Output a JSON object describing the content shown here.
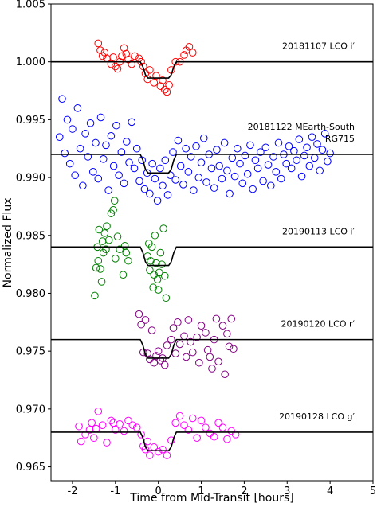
{
  "chart_data": {
    "type": "scatter",
    "xlabel": "Time from Mid-Transit [hours]",
    "ylabel": "Normalized Flux",
    "xlim": [
      -2.5,
      5
    ],
    "ylim": [
      0.9638,
      1.005
    ],
    "xticks": [
      -2,
      -1,
      0,
      1,
      2,
      3,
      4,
      5
    ],
    "yticks": [
      {
        "value": 0.965,
        "label": "0.965"
      },
      {
        "value": 0.97,
        "label": "0.970"
      },
      {
        "value": 0.975,
        "label": "0.975"
      },
      {
        "value": 0.98,
        "label": "0.980"
      },
      {
        "value": 0.985,
        "label": "0.985"
      },
      {
        "value": 0.99,
        "label": "0.990"
      },
      {
        "value": 0.995,
        "label": "0.995"
      },
      {
        "value": 1.0,
        "label": "1.000"
      },
      {
        "value": 1.005,
        "label": "1.005"
      }
    ],
    "model_x": [
      -2.5,
      -0.42,
      -0.36,
      -0.3,
      -0.24,
      0.24,
      0.3,
      0.36,
      0.42,
      5
    ],
    "series": [
      {
        "label": [
          "20181107 LCO i′"
        ],
        "color": "#ff0000",
        "x": [
          -1.4,
          -1.35,
          -1.3,
          -1.25,
          -1.2,
          -1.1,
          -1.05,
          -1.0,
          -0.95,
          -0.9,
          -0.85,
          -0.8,
          -0.75,
          -0.7,
          -0.62,
          -0.55,
          -0.45,
          -0.4,
          -0.35,
          -0.3,
          -0.25,
          -0.2,
          -0.1,
          -0.05,
          0.05,
          0.1,
          0.15,
          0.2,
          0.25,
          0.3,
          0.4,
          0.5,
          0.6,
          0.65,
          0.72,
          0.8
        ],
        "values": [
          1.0016,
          1.001,
          1.0005,
          1.0008,
          1.0003,
          0.9998,
          1.0004,
          0.9996,
          0.9994,
          1.0,
          1.0005,
          1.0012,
          1.0007,
          1.0002,
          0.9998,
          1.0005,
          1.0003,
          1.0,
          0.9996,
          0.999,
          0.9985,
          0.9993,
          0.9982,
          0.9988,
          0.9979,
          0.9984,
          0.9976,
          0.9974,
          0.998,
          0.9993,
          1.0,
          1.0,
          1.0006,
          1.001,
          1.0013,
          1.0008
        ],
        "model": [
          1.0,
          1.0,
          0.99958,
          0.99888,
          0.9986,
          0.9986,
          0.99888,
          0.99958,
          1.0,
          1.0
        ]
      },
      {
        "label": [
          "20181122 MEarth-South",
          "RG715"
        ],
        "color": "#0000ff",
        "x": [
          -2.3,
          -2.24,
          -2.18,
          -2.12,
          -2.06,
          -2.0,
          -1.94,
          -1.88,
          -1.82,
          -1.76,
          -1.7,
          -1.64,
          -1.58,
          -1.52,
          -1.46,
          -1.4,
          -1.34,
          -1.28,
          -1.22,
          -1.16,
          -1.1,
          -1.04,
          -0.98,
          -0.92,
          -0.86,
          -0.8,
          -0.74,
          -0.68,
          -0.62,
          -0.56,
          -0.5,
          -0.44,
          -0.38,
          -0.32,
          -0.26,
          -0.2,
          -0.14,
          -0.08,
          -0.02,
          0.04,
          0.1,
          0.16,
          0.22,
          0.28,
          0.34,
          0.4,
          0.46,
          0.52,
          0.58,
          0.64,
          0.7,
          0.76,
          0.82,
          0.88,
          0.94,
          1.0,
          1.06,
          1.12,
          1.18,
          1.24,
          1.3,
          1.36,
          1.42,
          1.48,
          1.54,
          1.6,
          1.66,
          1.72,
          1.78,
          1.84,
          1.9,
          1.96,
          2.02,
          2.08,
          2.14,
          2.2,
          2.26,
          2.32,
          2.38,
          2.44,
          2.5,
          2.56,
          2.62,
          2.68,
          2.74,
          2.8,
          2.86,
          2.92,
          2.98,
          3.04,
          3.1,
          3.16,
          3.22,
          3.28,
          3.34,
          3.4,
          3.46,
          3.52,
          3.58,
          3.64,
          3.7,
          3.76,
          3.82,
          3.88,
          3.94,
          4.0
        ],
        "values": [
          0.9935,
          0.9968,
          0.9921,
          0.995,
          0.9912,
          0.9942,
          0.9902,
          0.996,
          0.9925,
          0.9893,
          0.9938,
          0.9918,
          0.9947,
          0.9905,
          0.993,
          0.9899,
          0.9952,
          0.9916,
          0.9928,
          0.9889,
          0.9936,
          0.991,
          0.9945,
          0.9902,
          0.9922,
          0.9895,
          0.9931,
          0.9913,
          0.9948,
          0.9908,
          0.9925,
          0.9897,
          0.9915,
          0.989,
          0.9904,
          0.9886,
          0.9912,
          0.9899,
          0.988,
          0.9908,
          0.9893,
          0.9915,
          0.9885,
          0.9902,
          0.9922,
          0.9898,
          0.9932,
          0.991,
          0.9894,
          0.9925,
          0.9905,
          0.9918,
          0.9889,
          0.9927,
          0.99,
          0.9913,
          0.9934,
          0.9896,
          0.992,
          0.9908,
          0.9891,
          0.9924,
          0.991,
          0.9899,
          0.993,
          0.9906,
          0.9886,
          0.9917,
          0.9901,
          0.9925,
          0.9912,
          0.9895,
          0.9919,
          0.9903,
          0.9928,
          0.989,
          0.9915,
          0.9908,
          0.9922,
          0.9897,
          0.9926,
          0.9911,
          0.9893,
          0.9918,
          0.9905,
          0.993,
          0.9899,
          0.992,
          0.9912,
          0.9927,
          0.9908,
          0.9923,
          0.9915,
          0.9933,
          0.9901,
          0.9919,
          0.9926,
          0.991,
          0.9935,
          0.9917,
          0.9929,
          0.9906,
          0.9924,
          0.9938,
          0.9914,
          0.9921
        ],
        "model": [
          0.992,
          0.992,
          0.99152,
          0.99072,
          0.9904,
          0.9904,
          0.99072,
          0.99152,
          0.992,
          0.992
        ]
      },
      {
        "label": [
          "20190113 LCO i′"
        ],
        "color": "#008000",
        "x": [
          -1.48,
          -1.45,
          -1.42,
          -1.4,
          -1.38,
          -1.35,
          -1.32,
          -1.3,
          -1.28,
          -1.25,
          -1.22,
          -1.2,
          -1.15,
          -1.1,
          -1.05,
          -1.02,
          -1.0,
          -0.95,
          -0.9,
          -0.82,
          -0.78,
          -0.75,
          -0.7,
          -0.25,
          -0.22,
          -0.2,
          -0.18,
          -0.15,
          -0.12,
          -0.1,
          -0.08,
          -0.05,
          -0.02,
          0.0,
          0.02,
          0.05,
          0.08,
          0.12,
          0.15,
          0.18
        ],
        "values": [
          0.9798,
          0.9822,
          0.984,
          0.9828,
          0.9855,
          0.9821,
          0.981,
          0.9845,
          0.9835,
          0.9852,
          0.9838,
          0.9858,
          0.9846,
          0.9869,
          0.9872,
          0.988,
          0.983,
          0.9849,
          0.9838,
          0.9816,
          0.9841,
          0.9835,
          0.9828,
          0.9832,
          0.9843,
          0.982,
          0.9828,
          0.984,
          0.9805,
          0.9816,
          0.985,
          0.9826,
          0.9812,
          0.9803,
          0.9818,
          0.9835,
          0.9825,
          0.9856,
          0.9815,
          0.9796
        ],
        "model": [
          0.984,
          0.984,
          0.98352,
          0.98272,
          0.9824,
          0.9824,
          0.98272,
          0.98352,
          0.984,
          0.984
        ]
      },
      {
        "label": [
          "20190120 LCO r′"
        ],
        "color": "#800080",
        "x": [
          -0.45,
          -0.4,
          -0.35,
          -0.3,
          -0.25,
          -0.2,
          -0.15,
          -0.1,
          -0.05,
          0.0,
          0.05,
          0.1,
          0.15,
          0.2,
          0.3,
          0.35,
          0.4,
          0.45,
          0.5,
          0.6,
          0.65,
          0.7,
          0.75,
          0.8,
          0.9,
          0.95,
          1.0,
          1.1,
          1.15,
          1.2,
          1.25,
          1.3,
          1.35,
          1.4,
          1.5,
          1.55,
          1.6,
          1.65,
          1.7,
          1.75
        ],
        "values": [
          0.9782,
          0.9773,
          0.9749,
          0.9777,
          0.9748,
          0.9743,
          0.9768,
          0.974,
          0.9746,
          0.975,
          0.9742,
          0.9744,
          0.9738,
          0.9755,
          0.976,
          0.977,
          0.9748,
          0.9775,
          0.9756,
          0.9763,
          0.9745,
          0.9777,
          0.9758,
          0.9749,
          0.9762,
          0.974,
          0.9772,
          0.9766,
          0.9751,
          0.9745,
          0.9735,
          0.976,
          0.9778,
          0.9741,
          0.9772,
          0.973,
          0.9765,
          0.9754,
          0.9778,
          0.9752
        ],
        "model": [
          0.976,
          0.976,
          0.97552,
          0.97472,
          0.9744,
          0.9744,
          0.97472,
          0.97552,
          0.976,
          0.976
        ]
      },
      {
        "label": [
          "20190128 LCO g′"
        ],
        "color": "#ff00ff",
        "x": [
          -1.85,
          -1.8,
          -1.7,
          -1.6,
          -1.55,
          -1.5,
          -1.45,
          -1.4,
          -1.3,
          -1.2,
          -1.1,
          -1.05,
          -1.0,
          -0.9,
          -0.8,
          -0.7,
          -0.6,
          -0.5,
          -0.4,
          -0.35,
          -0.3,
          -0.25,
          -0.2,
          -0.1,
          0.0,
          0.1,
          0.2,
          0.3,
          0.4,
          0.5,
          0.6,
          0.7,
          0.8,
          0.9,
          1.0,
          1.1,
          1.2,
          1.3,
          1.4,
          1.5,
          1.6,
          1.7,
          1.8
        ],
        "values": [
          0.9685,
          0.9672,
          0.9678,
          0.9682,
          0.9688,
          0.9675,
          0.9683,
          0.9698,
          0.9686,
          0.9671,
          0.969,
          0.9688,
          0.9682,
          0.9687,
          0.9681,
          0.969,
          0.9686,
          0.9684,
          0.9678,
          0.9668,
          0.9665,
          0.9672,
          0.966,
          0.9667,
          0.9663,
          0.9665,
          0.966,
          0.9673,
          0.9688,
          0.9694,
          0.9686,
          0.9682,
          0.9692,
          0.9675,
          0.969,
          0.9684,
          0.9679,
          0.9676,
          0.9688,
          0.9684,
          0.9674,
          0.9681,
          0.9678
        ],
        "model": [
          0.968,
          0.968,
          0.96752,
          0.96672,
          0.9664,
          0.9664,
          0.96672,
          0.96752,
          0.968,
          0.968
        ]
      }
    ]
  }
}
